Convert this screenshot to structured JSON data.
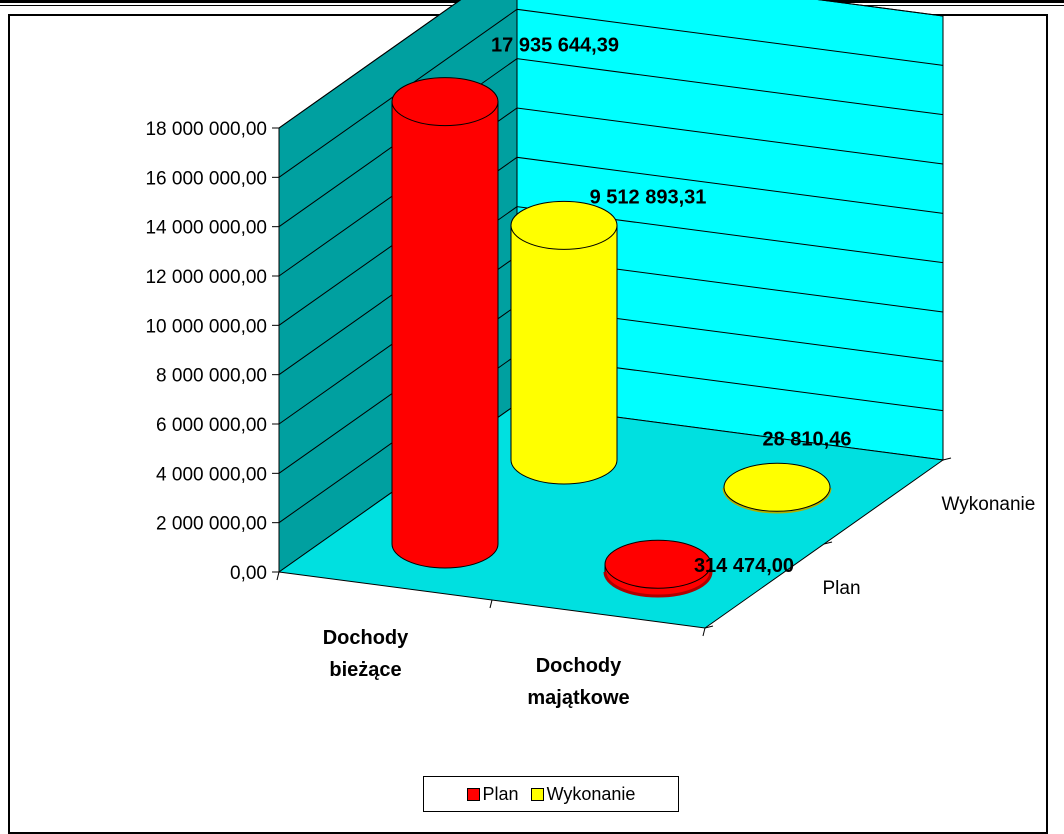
{
  "chart_data": {
    "type": "bar",
    "style": "3d-cylinder",
    "categories": [
      "Dochody bieżące",
      "Dochody majątkowe"
    ],
    "category_lines": [
      [
        "Dochody",
        "bieżące"
      ],
      [
        "Dochody",
        "majątkowe"
      ]
    ],
    "series": [
      {
        "name": "Plan",
        "color": "#ff0000",
        "values": [
          17935644.39,
          314474.0
        ],
        "labels": [
          "17 935 644,39",
          "314 474,00"
        ]
      },
      {
        "name": "Wykonanie",
        "color": "#ffff00",
        "values": [
          9512893.31,
          28810.46
        ],
        "labels": [
          "9 512 893,31",
          "28 810,46"
        ]
      }
    ],
    "depth_axis_labels": [
      "Plan",
      "Wykonanie"
    ],
    "yticks": [
      "0,00",
      "2 000 000,00",
      "4 000 000,00",
      "6 000 000,00",
      "8 000 000,00",
      "10 000 000,00",
      "12 000 000,00",
      "14 000 000,00",
      "16 000 000,00",
      "18 000 000,00"
    ],
    "ylim": [
      0,
      18000000
    ],
    "grid": true,
    "legend": "bottom",
    "wall_color": "#00ffff",
    "floor_color": "#00e0e0"
  }
}
